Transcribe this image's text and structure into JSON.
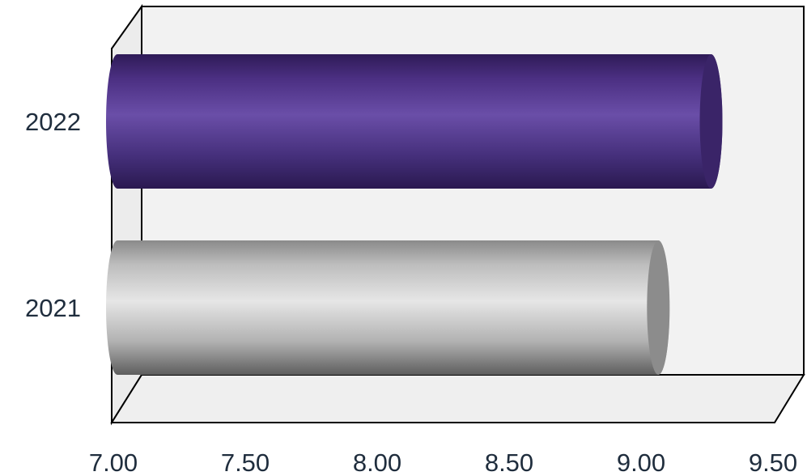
{
  "chart_data": {
    "type": "bar",
    "orientation": "horizontal",
    "style": "3d-cylinder",
    "categories": [
      "2021",
      "2022"
    ],
    "values": [
      9.05,
      9.25
    ],
    "bar_colors": [
      "#c8c8c8",
      "#5b3c8f"
    ],
    "xlim": [
      7.0,
      9.5
    ],
    "x_ticks": [
      "7.00",
      "7.50",
      "8.00",
      "8.50",
      "9.00",
      "9.50"
    ],
    "title": "",
    "xlabel": "",
    "ylabel": "",
    "grid": false,
    "legend": "none"
  }
}
